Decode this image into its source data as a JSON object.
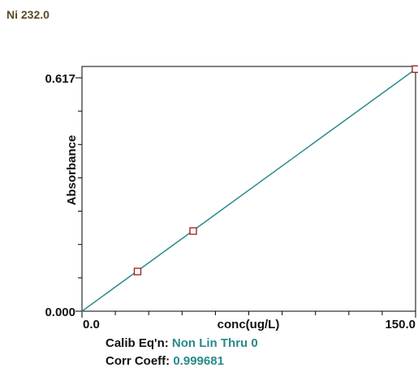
{
  "title": "Ni 232.0",
  "calib": {
    "label": "Calib Eq'n:",
    "value": "Non Lin Thru 0"
  },
  "corr": {
    "label": "Corr Coeff:",
    "value": "0.999681"
  },
  "chart_data": {
    "type": "scatter",
    "xlabel": "conc(ug/L)",
    "ylabel": "Absorbance",
    "xlim": [
      0,
      150
    ],
    "ylim": [
      0,
      0.617
    ],
    "x_tick_labels": [
      "0.0",
      "150.0"
    ],
    "y_tick_labels": [
      "0.000",
      "0.617"
    ],
    "points": [
      {
        "x": 25,
        "y": 0.105
      },
      {
        "x": 50,
        "y": 0.212
      },
      {
        "x": 150,
        "y": 0.64
      }
    ],
    "fit_line": {
      "x": [
        0,
        150
      ],
      "y": [
        0,
        0.64
      ]
    },
    "colors": {
      "line": "#2a8a8a",
      "marker": "#a01818",
      "axis": "#000000"
    },
    "grid": false
  }
}
